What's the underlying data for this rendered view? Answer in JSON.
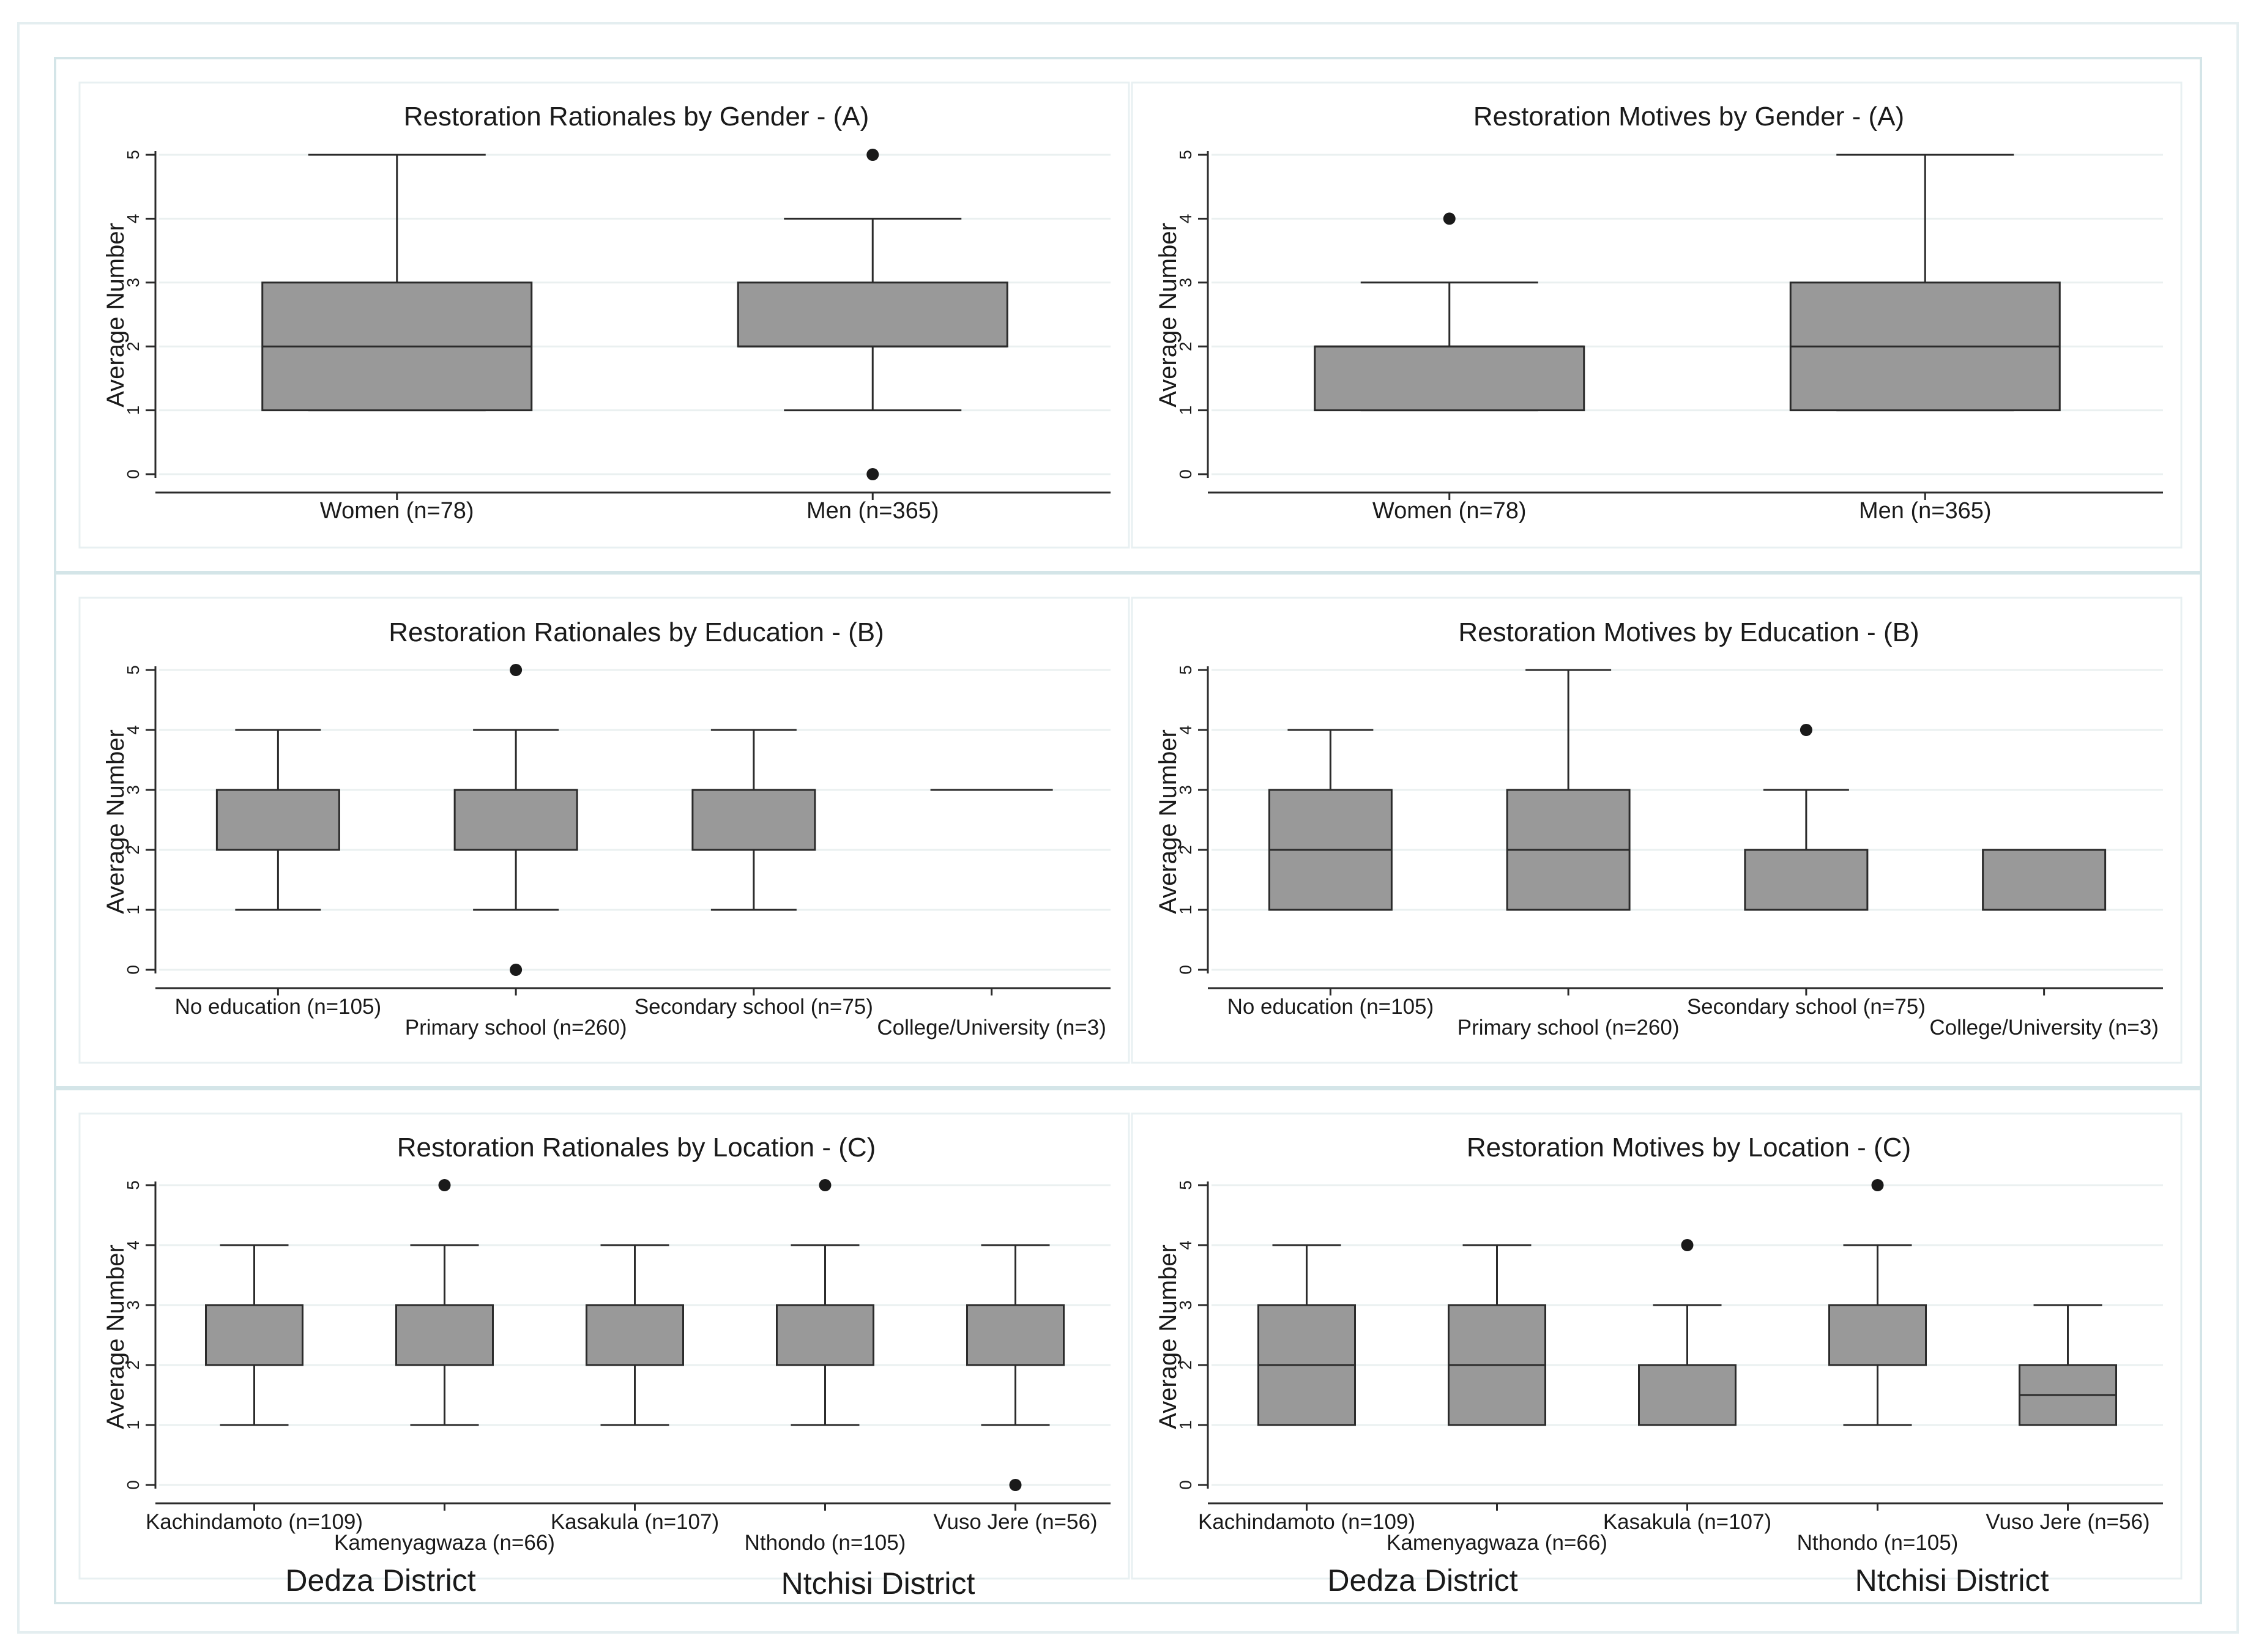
{
  "colors": {
    "box_fill": "#999999",
    "box_stroke": "#2b2b2b",
    "outlier": "#1a1a1a",
    "grid": "#eaf0f0",
    "frame": "#d4e5e8",
    "text": "#1a1a1a"
  },
  "chart_data": [
    {
      "type": "box",
      "title": "Restoration Rationales by Gender - (A)",
      "ylabel": "Average Number",
      "ylim": [
        0,
        5
      ],
      "yticks": [
        "0",
        "1",
        "2",
        "3",
        "4",
        "5"
      ],
      "grid": true,
      "categories": [
        "Women (n=78)",
        "Men (n=365)"
      ],
      "boxes": [
        {
          "whisker_low": 1,
          "q1": 1,
          "median": 2,
          "q3": 3,
          "whisker_high": 5,
          "outliers": []
        },
        {
          "whisker_low": 1,
          "q1": 2,
          "median": 2,
          "q3": 3,
          "whisker_high": 4,
          "outliers": [
            5,
            0
          ]
        }
      ],
      "district_labels": []
    },
    {
      "type": "box",
      "title": "Restoration Motives by Gender - (A)",
      "ylabel": "Average Number",
      "ylim": [
        0,
        5
      ],
      "yticks": [
        "0",
        "1",
        "2",
        "3",
        "4",
        "5"
      ],
      "grid": true,
      "categories": [
        "Women (n=78)",
        "Men (n=365)"
      ],
      "boxes": [
        {
          "whisker_low": 1,
          "q1": 1,
          "median": 2,
          "q3": 2,
          "whisker_high": 3,
          "outliers": [
            4
          ]
        },
        {
          "whisker_low": 1,
          "q1": 1,
          "median": 2,
          "q3": 3,
          "whisker_high": 5,
          "outliers": []
        }
      ],
      "district_labels": []
    },
    {
      "type": "box",
      "title": "Restoration Rationales by Education - (B)",
      "ylabel": "Average Number",
      "ylim": [
        0,
        5
      ],
      "yticks": [
        "0",
        "1",
        "2",
        "3",
        "4",
        "5"
      ],
      "grid": true,
      "categories": [
        "No education (n=105)",
        "Primary school (n=260)",
        "Secondary school (n=75)",
        "College/University (n=3)"
      ],
      "boxes": [
        {
          "whisker_low": 1,
          "q1": 2,
          "median": 2,
          "q3": 3,
          "whisker_high": 4,
          "outliers": []
        },
        {
          "whisker_low": 1,
          "q1": 2,
          "median": 2,
          "q3": 3,
          "whisker_high": 4,
          "outliers": [
            5,
            0
          ]
        },
        {
          "whisker_low": 1,
          "q1": 2,
          "median": 2,
          "q3": 3,
          "whisker_high": 4,
          "outliers": []
        },
        {
          "whisker_low": 3,
          "q1": 3,
          "median": 3,
          "q3": 3,
          "whisker_high": 3,
          "outliers": []
        }
      ],
      "district_labels": []
    },
    {
      "type": "box",
      "title": "Restoration Motives by Education - (B)",
      "ylabel": "Average Number",
      "ylim": [
        0,
        5
      ],
      "yticks": [
        "0",
        "1",
        "2",
        "3",
        "4",
        "5"
      ],
      "grid": true,
      "categories": [
        "No education (n=105)",
        "Primary school (n=260)",
        "Secondary school (n=75)",
        "College/University (n=3)"
      ],
      "boxes": [
        {
          "whisker_low": 1,
          "q1": 1,
          "median": 2,
          "q3": 3,
          "whisker_high": 4,
          "outliers": []
        },
        {
          "whisker_low": 1,
          "q1": 1,
          "median": 2,
          "q3": 3,
          "whisker_high": 5,
          "outliers": []
        },
        {
          "whisker_low": 1,
          "q1": 1,
          "median": 2,
          "q3": 2,
          "whisker_high": 3,
          "outliers": [
            4
          ]
        },
        {
          "whisker_low": 1,
          "q1": 1,
          "median": 2,
          "q3": 2,
          "whisker_high": 2,
          "outliers": []
        }
      ],
      "district_labels": []
    },
    {
      "type": "box",
      "title": "Restoration Rationales by Location - (C)",
      "ylabel": "Average Number",
      "ylim": [
        0,
        5
      ],
      "yticks": [
        "0",
        "1",
        "2",
        "3",
        "4",
        "5"
      ],
      "grid": true,
      "categories": [
        "Kachindamoto (n=109)",
        "Kamenyagwaza (n=66)",
        "Kasakula (n=107)",
        "Nthondo (n=105)",
        "Vuso Jere (n=56)"
      ],
      "boxes": [
        {
          "whisker_low": 1,
          "q1": 2,
          "median": 2,
          "q3": 3,
          "whisker_high": 4,
          "outliers": []
        },
        {
          "whisker_low": 1,
          "q1": 2,
          "median": 2,
          "q3": 3,
          "whisker_high": 4,
          "outliers": [
            5
          ]
        },
        {
          "whisker_low": 1,
          "q1": 2,
          "median": 2,
          "q3": 3,
          "whisker_high": 4,
          "outliers": []
        },
        {
          "whisker_low": 1,
          "q1": 2,
          "median": 2,
          "q3": 3,
          "whisker_high": 4,
          "outliers": [
            5
          ]
        },
        {
          "whisker_low": 1,
          "q1": 2,
          "median": 2,
          "q3": 3,
          "whisker_high": 4,
          "outliers": [
            0
          ]
        }
      ],
      "district_labels": [
        "Dedza District",
        "Ntchisi District"
      ]
    },
    {
      "type": "box",
      "title": "Restoration Motives by Location - (C)",
      "ylabel": "Average Number",
      "ylim": [
        0,
        5
      ],
      "yticks": [
        "0",
        "1",
        "2",
        "3",
        "4",
        "5"
      ],
      "grid": true,
      "categories": [
        "Kachindamoto (n=109)",
        "Kamenyagwaza (n=66)",
        "Kasakula (n=107)",
        "Nthondo (n=105)",
        "Vuso Jere (n=56)"
      ],
      "boxes": [
        {
          "whisker_low": 1,
          "q1": 1,
          "median": 2,
          "q3": 3,
          "whisker_high": 4,
          "outliers": []
        },
        {
          "whisker_low": 1,
          "q1": 1,
          "median": 2,
          "q3": 3,
          "whisker_high": 4,
          "outliers": []
        },
        {
          "whisker_low": 1,
          "q1": 1,
          "median": 2,
          "q3": 2,
          "whisker_high": 3,
          "outliers": [
            4
          ]
        },
        {
          "whisker_low": 1,
          "q1": 2,
          "median": 2,
          "q3": 3,
          "whisker_high": 4,
          "outliers": [
            5
          ]
        },
        {
          "whisker_low": 1,
          "q1": 1,
          "median": 1.5,
          "q3": 2,
          "whisker_high": 3,
          "outliers": []
        }
      ],
      "district_labels": [
        "Dedza District",
        "Ntchisi District"
      ]
    }
  ]
}
